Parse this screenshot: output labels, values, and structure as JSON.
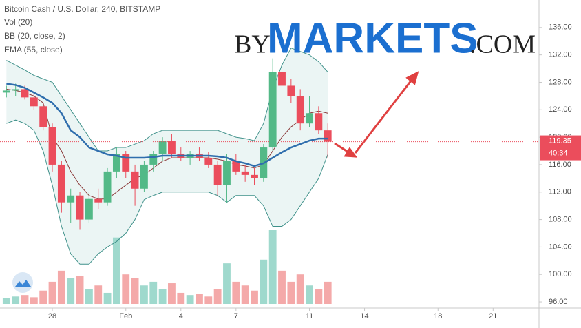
{
  "chart_data": {
    "type": "candlestick",
    "legend": [
      "Bitcoin Cash / U.S. Dollar, 240, BITSTAMP",
      "Vol (20)",
      "BB (20, close, 2)",
      "EMA (55, close)"
    ],
    "watermark": {
      "by": "BY",
      "markets": "MARKETS",
      "com": ".COM"
    },
    "last_price": 119.35,
    "countdown": "40:34",
    "x": [
      -2.5,
      -2,
      -1.5,
      -1,
      -0.5,
      0,
      0.5,
      1,
      1.5,
      2,
      2.5,
      3,
      3.5,
      4,
      4.5,
      5,
      5.5,
      6,
      6.5,
      7,
      7.5,
      8,
      8.5,
      9,
      9.5,
      10,
      10.5,
      11,
      11.5,
      12,
      12.5,
      13,
      13.5,
      14,
      14.5,
      15
    ],
    "open": [
      126.5,
      126.8,
      127.0,
      125.8,
      124.5,
      121.5,
      116.0,
      110.5,
      111.5,
      108.0,
      111.0,
      110.5,
      115.0,
      117.5,
      115.0,
      112.5,
      116.0,
      117.5,
      119.5,
      117.5,
      117.0,
      117.5,
      117.0,
      116.0,
      113.0,
      116.5,
      115.0,
      114.5,
      114.0,
      118.5,
      129.5,
      127.5,
      126.0,
      122.0,
      123.5,
      121.0
    ],
    "high": [
      127.5,
      127.8,
      127.5,
      126.5,
      125.0,
      122.0,
      116.5,
      112.5,
      112.0,
      112.0,
      112.5,
      115.5,
      118.5,
      118.0,
      116.0,
      116.5,
      118.0,
      120.0,
      120.5,
      118.5,
      118.0,
      118.5,
      117.8,
      116.5,
      117.5,
      117.5,
      116.0,
      115.5,
      119.0,
      131.5,
      130.5,
      128.5,
      127.0,
      126.0,
      124.5,
      122.0
    ],
    "low": [
      125.8,
      126.0,
      125.5,
      124.0,
      121.0,
      115.0,
      109.0,
      107.5,
      106.5,
      107.5,
      109.5,
      110.0,
      114.0,
      114.0,
      110.0,
      112.0,
      115.0,
      116.5,
      117.0,
      116.5,
      116.0,
      116.5,
      115.5,
      111.5,
      110.5,
      114.5,
      113.5,
      113.0,
      113.5,
      118.0,
      126.5,
      125.0,
      121.0,
      121.5,
      120.5,
      117.0
    ],
    "close": [
      126.8,
      127.0,
      125.8,
      124.5,
      121.5,
      116.0,
      110.5,
      111.5,
      108.0,
      111.0,
      110.5,
      115.0,
      117.5,
      115.0,
      112.5,
      116.0,
      117.5,
      119.5,
      117.5,
      117.0,
      117.5,
      117.0,
      116.0,
      113.0,
      116.5,
      115.0,
      114.5,
      114.0,
      118.5,
      129.5,
      127.5,
      126.0,
      122.0,
      123.5,
      121.0,
      119.35
    ],
    "volume": [
      8,
      10,
      12,
      9,
      18,
      30,
      45,
      35,
      38,
      20,
      25,
      15,
      90,
      40,
      35,
      25,
      30,
      20,
      28,
      15,
      12,
      14,
      10,
      20,
      55,
      30,
      25,
      18,
      60,
      100,
      45,
      30,
      40,
      25,
      20,
      30
    ],
    "vlim": [
      0,
      100
    ],
    "bb_upper": [
      131.2,
      130.5,
      129.8,
      129.0,
      128.5,
      128.0,
      126.0,
      124.0,
      122.0,
      120.0,
      118.0,
      118.0,
      118.5,
      118.5,
      119.0,
      119.5,
      120.5,
      121.0,
      121.0,
      121.0,
      121.0,
      121.0,
      121.0,
      121.0,
      120.5,
      120.0,
      119.8,
      119.5,
      122.0,
      127.0,
      130.5,
      133.0,
      132.5,
      132.0,
      131.0,
      129.5
    ],
    "bb_basis": [
      127.0,
      126.8,
      126.5,
      126.0,
      125.0,
      120.0,
      118.0,
      115.0,
      113.0,
      111.5,
      111.0,
      111.0,
      112.0,
      113.0,
      114.0,
      114.5,
      115.5,
      116.5,
      117.0,
      117.0,
      117.0,
      117.0,
      117.0,
      116.8,
      116.5,
      116.0,
      115.8,
      115.5,
      116.0,
      118.0,
      120.0,
      121.5,
      122.5,
      123.5,
      123.8,
      123.5
    ],
    "bb_lower": [
      122.0,
      122.5,
      122.0,
      121.0,
      118.0,
      113.0,
      107.0,
      103.0,
      101.5,
      101.5,
      103.0,
      104.0,
      104.8,
      106.0,
      108.0,
      110.9,
      111.5,
      112.0,
      112.0,
      112.0,
      112.0,
      112.0,
      112.0,
      111.5,
      110.5,
      111.5,
      111.5,
      111.5,
      110.0,
      107.0,
      107.0,
      108.0,
      110.0,
      112.0,
      114.0,
      117.5
    ],
    "ema": [
      127.8,
      127.6,
      127.2,
      126.5,
      125.8,
      125.0,
      123.5,
      121.0,
      120.0,
      118.5,
      118.0,
      117.5,
      117.3,
      117.0,
      117.0,
      117.0,
      117.1,
      117.3,
      117.3,
      117.3,
      117.3,
      117.3,
      117.3,
      117.2,
      117.0,
      116.5,
      116.2,
      115.8,
      116.2,
      117.0,
      117.8,
      118.5,
      119.0,
      119.5,
      119.8,
      119.8
    ],
    "xlim": [
      -2.85,
      26.5
    ],
    "ylim": [
      95.1,
      140.0
    ],
    "xticks": [
      {
        "value": 0,
        "label": "28"
      },
      {
        "value": 4,
        "label": "Feb"
      },
      {
        "value": 7,
        "label": "4"
      },
      {
        "value": 10,
        "label": "7"
      },
      {
        "value": 14,
        "label": "11"
      },
      {
        "value": 17,
        "label": "14"
      },
      {
        "value": 21,
        "label": "18"
      },
      {
        "value": 24,
        "label": "21"
      }
    ],
    "yticks": [
      {
        "value": 96,
        "label": "96.00"
      },
      {
        "value": 100,
        "label": "100.00"
      },
      {
        "value": 104,
        "label": "104.00"
      },
      {
        "value": 108,
        "label": "108.00"
      },
      {
        "value": 112,
        "label": "112.00"
      },
      {
        "value": 116,
        "label": "116.00"
      },
      {
        "value": 120,
        "label": "120.00"
      },
      {
        "value": 124,
        "label": "124.00"
      },
      {
        "value": 128,
        "label": "128.00"
      },
      {
        "value": 132,
        "label": "132.00"
      },
      {
        "value": 136,
        "label": "136.00"
      }
    ],
    "colors": {
      "up": "#53b987",
      "down": "#eb4d5c",
      "vol_up": "#9fd9cd",
      "vol_down": "#f4a9a9",
      "bb": "#3f918a",
      "basis": "#8c3a3a",
      "ema": "#2f6ead",
      "fill": "#e6f3f1"
    }
  }
}
